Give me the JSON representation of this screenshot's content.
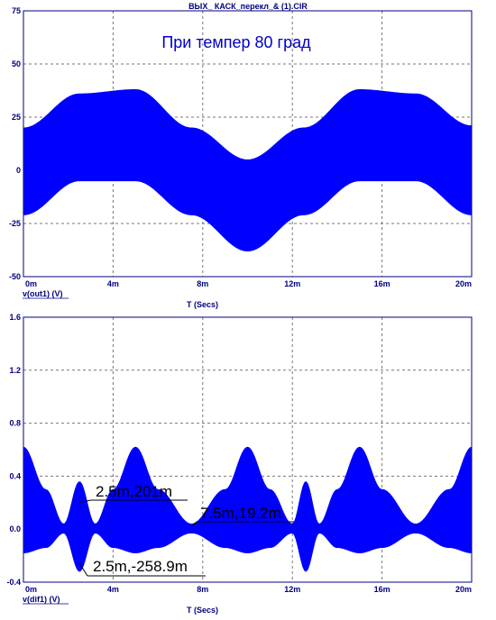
{
  "file_title": "ВЫХ_ КАСК_перекл_& (1).CIR",
  "colors": {
    "trace": "#0000ff",
    "grid": "#777777",
    "frame": "#000080",
    "text": "#000080"
  },
  "chart_data": [
    {
      "type": "line",
      "annotation": "При темпер 80 град",
      "trace_label": "v(out1) (V)",
      "xlabel": "T (Secs)",
      "xlim": [
        0,
        20
      ],
      "x_unit": "ms",
      "ylim": [
        -50,
        75
      ],
      "x_ticks": [
        "0m",
        "4m",
        "8m",
        "12m",
        "16m",
        "20m"
      ],
      "y_ticks": [
        "75",
        "50",
        "25",
        "0",
        "-25",
        "-50"
      ],
      "series": [
        {
          "envelope_upper": {
            "x": [
              0,
              2.5,
              5,
              7.5,
              10,
              12.5,
              15,
              17.5,
              20
            ],
            "y": [
              20,
              36,
              38,
              20,
              5,
              20,
              38,
              36,
              21
            ]
          },
          "envelope_lower": {
            "x": [
              0,
              2.5,
              5,
              7.5,
              10,
              12.5,
              15,
              17.5,
              20
            ],
            "y": [
              -21,
              -5,
              -5,
              -21,
              -38,
              -21,
              -5,
              -5,
              -21
            ]
          }
        }
      ]
    },
    {
      "type": "line",
      "trace_label": "v(dif1) (V)",
      "xlabel": "T (Secs)",
      "xlim": [
        0,
        20
      ],
      "x_unit": "ms",
      "ylim": [
        -0.4,
        1.6
      ],
      "x_ticks": [
        "0m",
        "4m",
        "8m",
        "12m",
        "16m",
        "20m"
      ],
      "y_ticks": [
        "1.6",
        "1.2",
        "0.8",
        "0.4",
        "0.0",
        "-0.4"
      ],
      "series": [
        {
          "envelope_upper": {
            "x": [
              0,
              1.0,
              1.8,
              2.5,
              3.2,
              4.0,
              5.0,
              6.0,
              7.5,
              9.0,
              10.0,
              11.0,
              12.0,
              12.6,
              13.2,
              14.0,
              15.0,
              16.0,
              17.5,
              19.0,
              20.0
            ],
            "y": [
              0.62,
              0.3,
              0.04,
              0.36,
              0.04,
              0.3,
              0.62,
              0.3,
              0.04,
              0.3,
              0.62,
              0.3,
              0.04,
              0.36,
              0.04,
              0.3,
              0.62,
              0.3,
              0.04,
              0.3,
              0.62
            ]
          },
          "envelope_lower": {
            "x": [
              0,
              1.0,
              1.8,
              2.5,
              3.2,
              4.0,
              5.0,
              6.0,
              7.5,
              9.0,
              10.0,
              11.0,
              12.0,
              12.6,
              13.2,
              14.0,
              15.0,
              16.0,
              17.5,
              19.0,
              20.0
            ],
            "y": [
              -0.18,
              -0.14,
              -0.03,
              -0.32,
              -0.03,
              -0.14,
              -0.18,
              -0.14,
              -0.03,
              -0.14,
              -0.18,
              -0.14,
              -0.03,
              -0.32,
              -0.03,
              -0.14,
              -0.18,
              -0.14,
              -0.03,
              -0.14,
              -0.18
            ]
          }
        }
      ],
      "cursor_labels": [
        {
          "text": "2.5m,201m",
          "x": 2.5,
          "y": 0.201
        },
        {
          "text": "7.5m,19.2m",
          "x": 7.5,
          "y": 0.0192
        },
        {
          "text": "2.5m,-258.9m",
          "x": 2.5,
          "y": -0.2589
        }
      ]
    }
  ]
}
